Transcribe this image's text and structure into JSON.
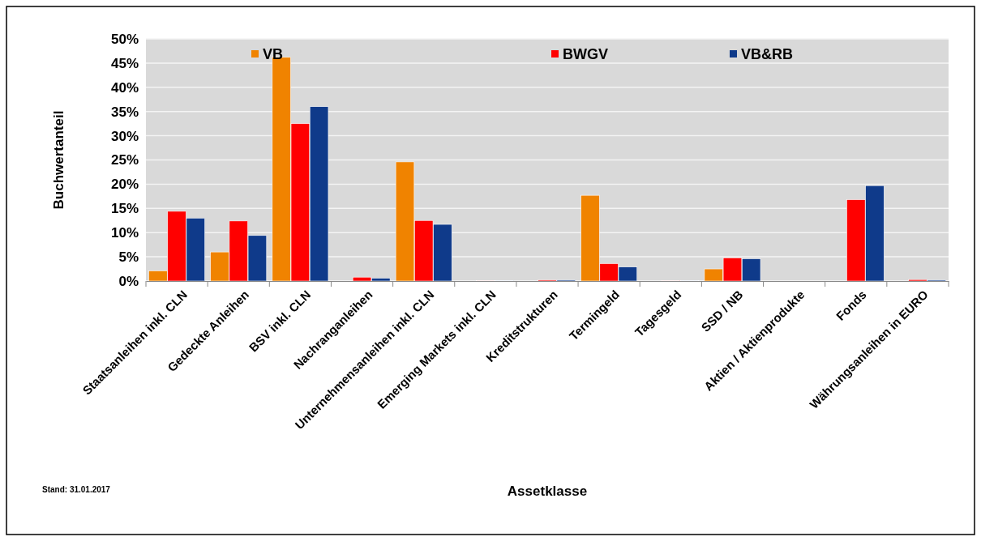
{
  "chart_data": {
    "type": "bar",
    "xlabel": "Assetklasse",
    "ylabel": "Buchwertanteil",
    "categories": [
      "Staatsanleihen inkl. CLN",
      "Gedeckte Anleihen",
      "BSV inkl. CLN",
      "Nachranganleihen",
      "Unternehmensanleihen inkl. CLN",
      "Emerging Markets inkl. CLN",
      "Kreditstrukturen",
      "Termingeld",
      "Tagesgeld",
      "SSD / NB",
      "Aktien / Aktienprodukte",
      "Fonds",
      "Währungsanleihen in EURO"
    ],
    "series": [
      {
        "name": "VB",
        "color": "#f08300",
        "values": [
          2.1,
          6.0,
          46.2,
          0,
          24.6,
          0,
          0,
          17.7,
          0,
          2.5,
          0,
          0,
          0
        ]
      },
      {
        "name": "BWGV",
        "color": "#ff0000",
        "values": [
          14.4,
          12.4,
          32.5,
          0.8,
          12.5,
          0.1,
          0.2,
          3.6,
          0.1,
          4.8,
          0,
          16.8,
          0.3
        ]
      },
      {
        "name": "VB&RB",
        "color": "#0f3a8a",
        "values": [
          13.0,
          9.4,
          36.0,
          0.6,
          11.7,
          0.1,
          0.2,
          2.9,
          0.1,
          4.6,
          0,
          19.7,
          0.2
        ]
      }
    ],
    "ylim": [
      0,
      50
    ],
    "yticks": [
      {
        "value": 0,
        "label": "0%"
      },
      {
        "value": 5,
        "label": "5%"
      },
      {
        "value": 10,
        "label": "10%"
      },
      {
        "value": 15,
        "label": "15%"
      },
      {
        "value": 20,
        "label": "20%"
      },
      {
        "value": 25,
        "label": "25%"
      },
      {
        "value": 30,
        "label": "30%"
      },
      {
        "value": 35,
        "label": "35%"
      },
      {
        "value": 40,
        "label": "40%"
      },
      {
        "value": 45,
        "label": "45%"
      },
      {
        "value": 50,
        "label": "50%"
      }
    ],
    "grid": "y",
    "legend": "top",
    "annotations": [
      "Stand: 31.01.2017"
    ]
  }
}
